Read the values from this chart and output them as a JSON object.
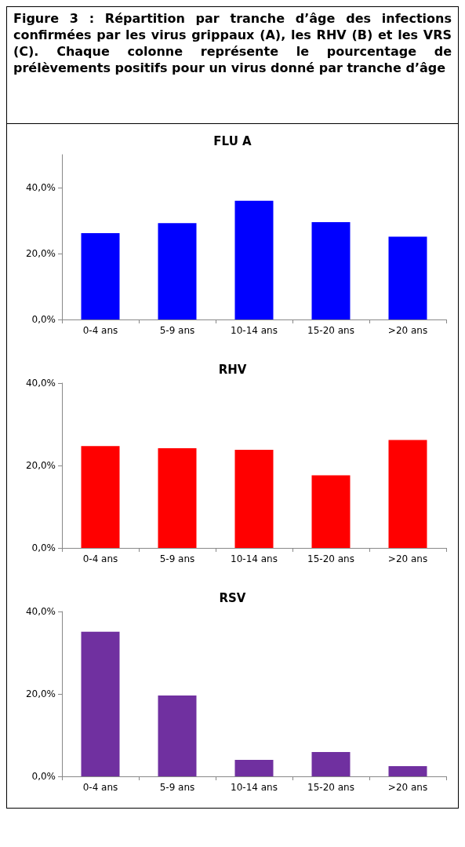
{
  "chart_data": [
    {
      "type": "bar",
      "title": "FLU A",
      "annotations": [
        "Figure 3 : Répartition par tranche d’âge des infections confirmées par les virus grippaux (A), les RHV (B) et les VRS (C). Chaque colonne représente le pourcentage de prélèvements positifs pour un virus donné par tranche d’âge"
      ],
      "categories": [
        "0-4 ans",
        "5-9 ans",
        "10-14 ans",
        "15-20 ans",
        ">20 ans"
      ],
      "values": [
        26.2,
        29.2,
        36.0,
        29.5,
        25.1
      ],
      "color": "#0000ff",
      "ylim": [
        0,
        50
      ],
      "yticks": [
        {
          "value": 0,
          "label": "0,0%"
        },
        {
          "value": 20,
          "label": "20,0%"
        },
        {
          "value": 40,
          "label": "40,0%"
        }
      ]
    },
    {
      "type": "bar",
      "title": "RHV",
      "categories": [
        "0-4 ans",
        "5-9 ans",
        "10-14 ans",
        "15-20 ans",
        ">20 ans"
      ],
      "values": [
        24.7,
        24.2,
        23.8,
        17.6,
        26.2
      ],
      "color": "#ff0000",
      "ylim": [
        0,
        40
      ],
      "yticks": [
        {
          "value": 0,
          "label": "0,0%"
        },
        {
          "value": 20,
          "label": "20,0%"
        },
        {
          "value": 40,
          "label": "40,0%"
        }
      ]
    },
    {
      "type": "bar",
      "title": "RSV",
      "categories": [
        "0-4 ans",
        "5-9 ans",
        "10-14 ans",
        "15-20 ans",
        ">20 ans"
      ],
      "values": [
        35.1,
        19.6,
        4.0,
        5.9,
        2.5
      ],
      "color": "#7030a0",
      "ylim": [
        0,
        40
      ],
      "yticks": [
        {
          "value": 0,
          "label": "0,0%"
        },
        {
          "value": 20,
          "label": "20,0%"
        },
        {
          "value": 40,
          "label": "40,0%"
        }
      ]
    }
  ]
}
